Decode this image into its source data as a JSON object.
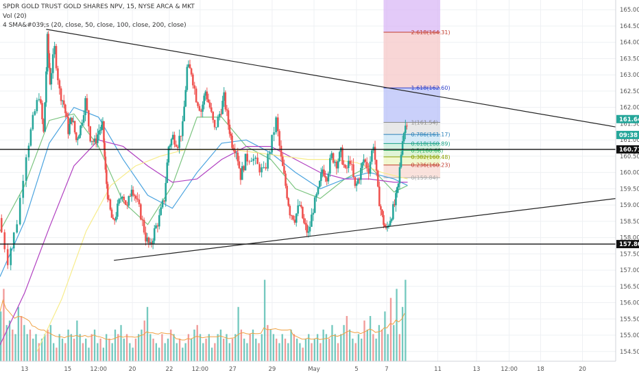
{
  "legend": {
    "symbol_line": "SPDR GOLD TRUST GOLD SHARES NPV, 15, NYSE ARCA & MKT",
    "volume_line": "Vol (20)",
    "sma_line": "4 SMA&#039;s (20, close, 50, close, 100, close, 200, close)"
  },
  "colors": {
    "up_candle": "#26a69a",
    "down_candle": "#ef5350",
    "sma20": "#7bc47f",
    "sma50": "#4aa3df",
    "sma100": "#b03fc0",
    "sma200": "#f7ec8a",
    "volume_ma": "#f0a040",
    "fib_top_fill": "#d9b8f5",
    "fib_extension_fill": "#f6c8c8",
    "fib_blue_fill": "#b8c0f8"
  },
  "icons": {
    "lines": "trendline-icon"
  },
  "chart_data": {
    "type": "candlestick",
    "y_axis": {
      "range": [
        154.2,
        165.3
      ],
      "ticks": [
        "165.00",
        "164.50",
        "164.00",
        "163.50",
        "163.00",
        "162.50",
        "162.00",
        "161.50",
        "161.00",
        "160.50",
        "160.00",
        "159.50",
        "159.00",
        "158.50",
        "158.00",
        "157.50",
        "157.00",
        "156.50",
        "156.00",
        "155.50",
        "155.00",
        "154.50"
      ]
    },
    "x_axis": {
      "tick_labels": [
        "13",
        "15",
        "12:00",
        "20",
        "22",
        "12:00",
        "27",
        "29",
        "May",
        "5",
        "7",
        "11",
        "13",
        "12:00",
        "18",
        "20"
      ],
      "tick_fractions": [
        0.04,
        0.11,
        0.16,
        0.215,
        0.275,
        0.325,
        0.378,
        0.442,
        0.51,
        0.579,
        0.628,
        0.711,
        0.774,
        0.827,
        0.878,
        0.946
      ]
    },
    "price_path": [
      [
        0.0,
        158.6
      ],
      [
        0.015,
        157.3
      ],
      [
        0.03,
        158.5
      ],
      [
        0.045,
        160.6
      ],
      [
        0.055,
        161.6
      ],
      [
        0.065,
        162.4
      ],
      [
        0.072,
        161.2
      ],
      [
        0.078,
        164.1
      ],
      [
        0.082,
        162.8
      ],
      [
        0.09,
        163.8
      ],
      [
        0.098,
        162.5
      ],
      [
        0.105,
        162.1
      ],
      [
        0.112,
        161.3
      ],
      [
        0.118,
        161.7
      ],
      [
        0.125,
        161.0
      ],
      [
        0.132,
        161.4
      ],
      [
        0.14,
        162.2
      ],
      [
        0.148,
        161.1
      ],
      [
        0.155,
        160.9
      ],
      [
        0.162,
        161.3
      ],
      [
        0.168,
        161.4
      ],
      [
        0.172,
        160.0
      ],
      [
        0.178,
        159.0
      ],
      [
        0.185,
        158.4
      ],
      [
        0.192,
        158.9
      ],
      [
        0.2,
        159.4
      ],
      [
        0.208,
        158.9
      ],
      [
        0.215,
        159.6
      ],
      [
        0.222,
        159.2
      ],
      [
        0.23,
        158.7
      ],
      [
        0.238,
        158.0
      ],
      [
        0.245,
        157.7
      ],
      [
        0.252,
        158.2
      ],
      [
        0.26,
        158.6
      ],
      [
        0.268,
        159.2
      ],
      [
        0.275,
        160.8
      ],
      [
        0.282,
        161.1
      ],
      [
        0.29,
        160.9
      ],
      [
        0.298,
        161.4
      ],
      [
        0.305,
        163.2
      ],
      [
        0.312,
        163.1
      ],
      [
        0.32,
        162.3
      ],
      [
        0.328,
        161.9
      ],
      [
        0.335,
        162.5
      ],
      [
        0.342,
        162.0
      ],
      [
        0.35,
        161.3
      ],
      [
        0.358,
        161.8
      ],
      [
        0.365,
        162.3
      ],
      [
        0.372,
        161.5
      ],
      [
        0.378,
        160.9
      ],
      [
        0.385,
        160.7
      ],
      [
        0.392,
        159.9
      ],
      [
        0.4,
        160.4
      ],
      [
        0.41,
        160.5
      ],
      [
        0.42,
        160.2
      ],
      [
        0.43,
        160.0
      ],
      [
        0.44,
        160.7
      ],
      [
        0.45,
        161.6
      ],
      [
        0.458,
        160.4
      ],
      [
        0.465,
        159.6
      ],
      [
        0.472,
        158.8
      ],
      [
        0.48,
        158.6
      ],
      [
        0.488,
        159.0
      ],
      [
        0.495,
        158.4
      ],
      [
        0.502,
        158.1
      ],
      [
        0.51,
        158.9
      ],
      [
        0.518,
        159.4
      ],
      [
        0.525,
        160.1
      ],
      [
        0.532,
        159.9
      ],
      [
        0.54,
        160.5
      ],
      [
        0.548,
        160.3
      ],
      [
        0.555,
        160.6
      ],
      [
        0.562,
        160.0
      ],
      [
        0.57,
        160.4
      ],
      [
        0.578,
        159.5
      ],
      [
        0.585,
        159.9
      ],
      [
        0.592,
        160.4
      ],
      [
        0.6,
        160.1
      ],
      [
        0.608,
        160.9
      ],
      [
        0.615,
        159.4
      ],
      [
        0.622,
        158.6
      ],
      [
        0.628,
        158.2
      ],
      [
        0.635,
        158.6
      ],
      [
        0.642,
        159.0
      ],
      [
        0.648,
        159.6
      ],
      [
        0.655,
        161.1
      ],
      [
        0.662,
        161.6
      ]
    ],
    "sma_series": [
      {
        "name": "SMA 20",
        "color": "#7bc47f",
        "points": [
          [
            0.0,
            158.2
          ],
          [
            0.04,
            159.6
          ],
          [
            0.08,
            161.6
          ],
          [
            0.12,
            161.8
          ],
          [
            0.16,
            160.8
          ],
          [
            0.2,
            159.1
          ],
          [
            0.24,
            158.4
          ],
          [
            0.28,
            159.6
          ],
          [
            0.32,
            161.7
          ],
          [
            0.36,
            161.7
          ],
          [
            0.4,
            160.8
          ],
          [
            0.44,
            160.4
          ],
          [
            0.48,
            159.5
          ],
          [
            0.52,
            159.2
          ],
          [
            0.56,
            159.8
          ],
          [
            0.6,
            160.2
          ],
          [
            0.64,
            159.4
          ],
          [
            0.662,
            159.6
          ]
        ]
      },
      {
        "name": "SMA 50",
        "color": "#4aa3df",
        "points": [
          [
            0.0,
            156.8
          ],
          [
            0.04,
            158.5
          ],
          [
            0.08,
            160.9
          ],
          [
            0.12,
            162.0
          ],
          [
            0.16,
            161.7
          ],
          [
            0.2,
            160.4
          ],
          [
            0.24,
            159.3
          ],
          [
            0.28,
            158.9
          ],
          [
            0.32,
            160.0
          ],
          [
            0.36,
            160.9
          ],
          [
            0.4,
            161.0
          ],
          [
            0.44,
            160.6
          ],
          [
            0.48,
            160.0
          ],
          [
            0.52,
            159.5
          ],
          [
            0.56,
            159.8
          ],
          [
            0.6,
            160.0
          ],
          [
            0.64,
            159.8
          ],
          [
            0.662,
            159.6
          ]
        ]
      },
      {
        "name": "SMA 100",
        "color": "#b03fc0",
        "points": [
          [
            0.0,
            154.7
          ],
          [
            0.04,
            156.3
          ],
          [
            0.08,
            158.3
          ],
          [
            0.12,
            160.2
          ],
          [
            0.16,
            161.0
          ],
          [
            0.2,
            160.8
          ],
          [
            0.24,
            160.2
          ],
          [
            0.28,
            159.7
          ],
          [
            0.32,
            159.8
          ],
          [
            0.36,
            160.4
          ],
          [
            0.4,
            160.8
          ],
          [
            0.44,
            160.8
          ],
          [
            0.48,
            160.4
          ],
          [
            0.52,
            160.0
          ],
          [
            0.56,
            159.8
          ],
          [
            0.6,
            159.8
          ],
          [
            0.64,
            159.7
          ],
          [
            0.662,
            159.7
          ]
        ]
      },
      {
        "name": "SMA 200",
        "color": "#f7ec8a",
        "points": [
          [
            0.06,
            154.5
          ],
          [
            0.1,
            156.1
          ],
          [
            0.14,
            158.2
          ],
          [
            0.18,
            159.6
          ],
          [
            0.22,
            160.2
          ],
          [
            0.26,
            160.5
          ],
          [
            0.3,
            160.7
          ],
          [
            0.34,
            160.7
          ],
          [
            0.38,
            160.7
          ],
          [
            0.42,
            160.6
          ],
          [
            0.46,
            160.5
          ],
          [
            0.5,
            160.4
          ],
          [
            0.54,
            160.4
          ],
          [
            0.58,
            160.3
          ],
          [
            0.62,
            160.0
          ],
          [
            0.662,
            159.8
          ]
        ]
      }
    ],
    "horizontal_lines": [
      {
        "value": 160.71,
        "label": "160.71"
      },
      {
        "value": 157.8,
        "label": "157.80"
      }
    ],
    "trendlines": [
      {
        "from": [
          0.075,
          164.4
        ],
        "to": [
          1.0,
          161.4
        ]
      },
      {
        "from": [
          0.185,
          157.3
        ],
        "to": [
          1.0,
          159.2
        ]
      }
    ],
    "price_labels": [
      {
        "value": 161.64,
        "label": "161.64",
        "color": "#26a69a"
      },
      {
        "value": 161.3,
        "label": "09:38",
        "color": "#26a69a"
      }
    ],
    "fibonacci": {
      "x_range": [
        0.623,
        0.715
      ],
      "top_zone": {
        "from": 164.31,
        "to": 165.3,
        "color": "#d9b8f5"
      },
      "levels": [
        {
          "ratio_label": "2.618(164.31)",
          "value": 164.31,
          "color": "#c0392b",
          "fill": "#f6c8c8"
        },
        {
          "ratio_label": "1.618(162.60)",
          "value": 162.6,
          "color": "#2c3ec8",
          "fill": "#b8c0f8"
        },
        {
          "ratio_label": "1(161.54)",
          "value": 161.54,
          "color": "#888888",
          "fill": "#e0e0e0"
        },
        {
          "ratio_label": "0.786(161.17)",
          "value": 161.17,
          "color": "#2980b9",
          "fill": "#c8e4f5"
        },
        {
          "ratio_label": "0.618(160.89)",
          "value": 160.89,
          "color": "#16a085",
          "fill": "#c5ecd8"
        },
        {
          "ratio_label": "0.5(160.68)",
          "value": 160.68,
          "color": "#27ae60",
          "fill": "#d5f0c8"
        },
        {
          "ratio_label": "0.382(160.48)",
          "value": 160.48,
          "color": "#8aa000",
          "fill": "#eef5c0"
        },
        {
          "ratio_label": "0.236(160.23)",
          "value": 160.23,
          "color": "#c0392b",
          "fill": "#f8d8d0"
        },
        {
          "ratio_label": "0(159.84)",
          "value": 159.84,
          "color": "#aaaaaa",
          "fill": null
        }
      ]
    },
    "volume": {
      "relative_heights": [
        0.55,
        0.8,
        0.4,
        0.45,
        0.35,
        0.3,
        0.6,
        0.5,
        0.4,
        0.3,
        0.35,
        0.25,
        0.3,
        0.2,
        0.25,
        0.3,
        0.35,
        0.4,
        0.2,
        0.15,
        0.3,
        0.25,
        0.2,
        0.35,
        0.3,
        0.25,
        0.45,
        0.3,
        0.2,
        0.25,
        0.15,
        0.3,
        0.35,
        0.2,
        0.25,
        0.15,
        0.3,
        0.25,
        0.2,
        0.35,
        0.3,
        0.4,
        0.25,
        0.3,
        0.2,
        0.15,
        0.25,
        0.3,
        0.35,
        0.45,
        0.6,
        0.3,
        0.25,
        0.2,
        0.15,
        0.3,
        0.2,
        0.25,
        0.35,
        0.3,
        0.2,
        0.25,
        0.15,
        0.2,
        0.3,
        0.25,
        0.35,
        0.4,
        0.3,
        0.2,
        0.25,
        0.3,
        0.15,
        0.2,
        0.3,
        0.35,
        0.25,
        0.3,
        0.2,
        0.25,
        0.3,
        0.6,
        0.35,
        0.25,
        0.2,
        0.3,
        0.35,
        0.25,
        0.2,
        0.3,
        0.9,
        0.4,
        0.35,
        0.3,
        0.25,
        0.2,
        0.3,
        0.25,
        0.2,
        0.35,
        0.3,
        0.25,
        0.2,
        0.15,
        0.25,
        0.3,
        0.2,
        0.25,
        0.3,
        0.2,
        0.35,
        0.3,
        0.25,
        0.4,
        0.3,
        0.2,
        0.3,
        0.4,
        0.5,
        0.35,
        0.25,
        0.2,
        0.3,
        0.25,
        0.45,
        0.35,
        0.5,
        0.3,
        0.25,
        0.4,
        0.35,
        0.55,
        0.3,
        0.7,
        0.4,
        0.8,
        0.3,
        0.6,
        0.9
      ]
    }
  }
}
